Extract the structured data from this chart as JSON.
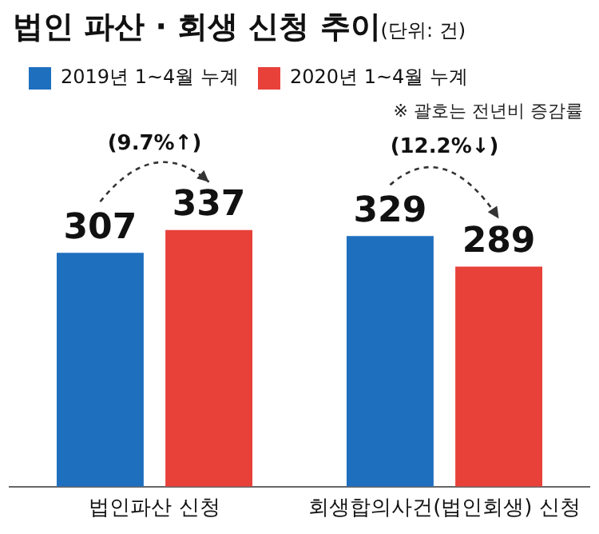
{
  "chart_data": {
    "type": "bar",
    "title": "법인 파산 · 회생 신청 추이",
    "subtitle": "(단위: 건)",
    "categories": [
      "법인파산 신청",
      "회생합의사건(법인회생) 신청"
    ],
    "series": [
      {
        "name": "2019년 1~4월 누계",
        "color": "#1f6fbf",
        "values": [
          307,
          329
        ]
      },
      {
        "name": "2020년 1~4월 누계",
        "color": "#e8413a",
        "values": [
          337,
          289
        ]
      }
    ],
    "data_labels": true,
    "legend": "top left",
    "grid": false,
    "tick_labels": "x",
    "annotations": [
      "※ 괄호는 전년비 증감률",
      "(9.7%↑)",
      "(12.2%↓)"
    ]
  }
}
